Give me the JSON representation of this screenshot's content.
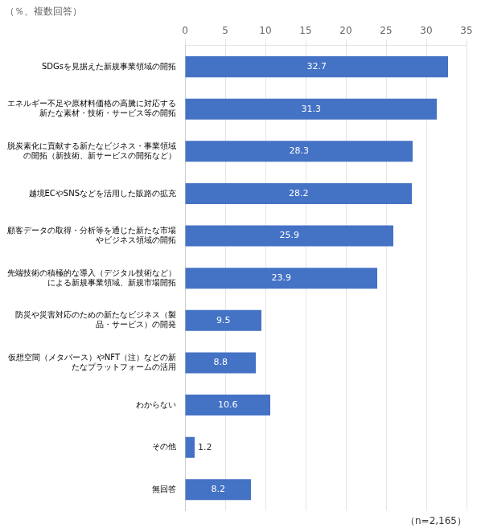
{
  "chart_data": {
    "type": "bar",
    "orientation": "horizontal",
    "title": "（％、複数回答）",
    "annotations": [
      "（n=2,165）"
    ],
    "categories": [
      "SDGsを見据えた新規事業領域の開拓",
      "エネルギー不足や原材料価格の高騰に対応する\n新たな素材・技術・サービス等の開拓",
      "脱炭素化に貢献する新たなビジネス・事業領域\nの開拓（新技術、新サービスの開拓など）",
      "越境ECやSNSなどを活用した販路の拡充",
      "顧客データの取得・分析等を通じた新たな市場\nやビジネス領域の開拓",
      "先端技術の積極的な導入（デジタル技術など）\nによる新規事業領域、新規市場開拓",
      "防災や災害対応のための新たなビジネス（製\n品・サービス）の開発",
      "仮想空間（メタバース）やNFT（注）などの新\nたなプラットフォームの活用",
      "わからない",
      "その他",
      "無回答"
    ],
    "values": [
      32.7,
      31.3,
      28.3,
      28.2,
      25.9,
      23.9,
      9.5,
      8.8,
      10.6,
      1.2,
      8.2
    ],
    "color": "#4472C4",
    "xlim": [
      0,
      35
    ],
    "xticks": [
      0,
      5,
      10,
      15,
      20,
      25,
      30,
      35
    ],
    "grid": true,
    "data_labels": true
  }
}
